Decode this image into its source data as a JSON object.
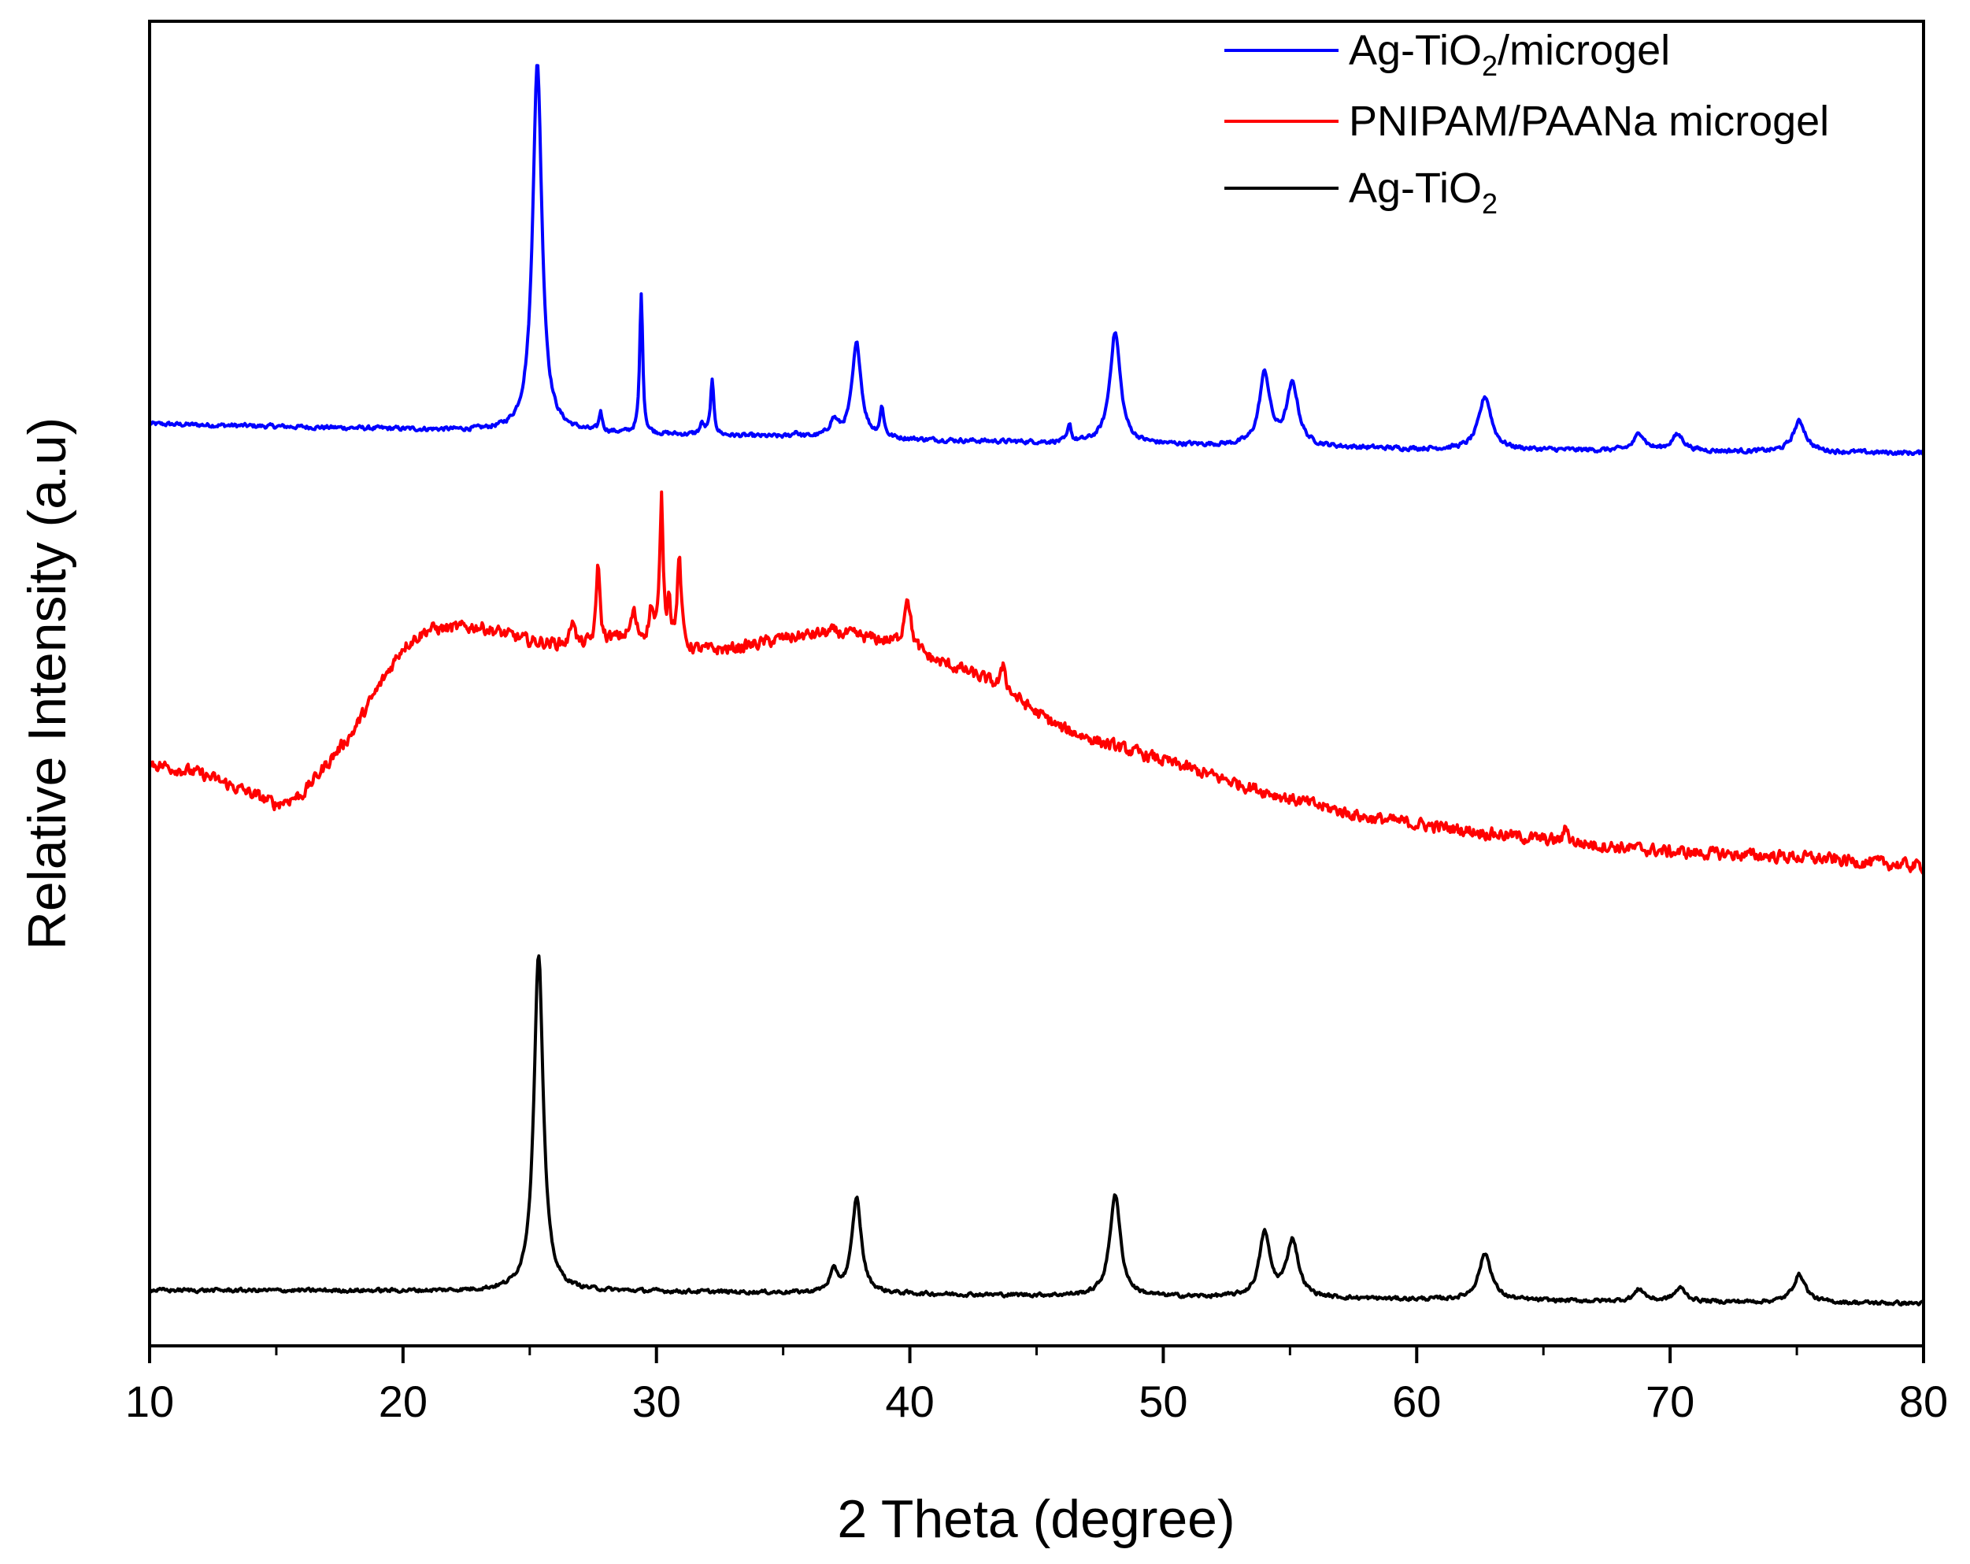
{
  "chart_data": {
    "type": "line",
    "title": "",
    "xlabel": "2 Theta (degree)",
    "ylabel": "Relative Intensity (a.u)",
    "xlim": [
      10,
      80
    ],
    "ylim": [
      0,
      100
    ],
    "xticks": [
      10,
      20,
      30,
      40,
      50,
      60,
      70,
      80
    ],
    "y_tick_labels": false,
    "legend_position": "top-right",
    "series": [
      {
        "name": "Ag-TiO2/microgel",
        "legend_label": {
          "base": "Ag-TiO",
          "sub": "2",
          "rest": "/microgel"
        },
        "color": "#0000ff",
        "baseline": [
          [
            10,
            69.6
          ],
          [
            25,
            69.0
          ],
          [
            35,
            68.6
          ],
          [
            45,
            68.2
          ],
          [
            60,
            67.7
          ],
          [
            80,
            67.4
          ]
        ],
        "peaks": [
          {
            "x": 25.3,
            "h": 27.8,
            "w": 0.22
          },
          {
            "x": 27.8,
            "h": 1.5,
            "w": 0.07
          },
          {
            "x": 29.4,
            "h": 10.6,
            "w": 0.07
          },
          {
            "x": 32.2,
            "h": 4.0,
            "w": 0.08
          },
          {
            "x": 31.8,
            "h": 0.8,
            "w": 0.1
          },
          {
            "x": 35.5,
            "h": 0.4,
            "w": 0.1
          },
          {
            "x": 37.0,
            "h": 1.2,
            "w": 0.2
          },
          {
            "x": 37.9,
            "h": 7.1,
            "w": 0.22
          },
          {
            "x": 38.9,
            "h": 2.2,
            "w": 0.09
          },
          {
            "x": 46.3,
            "h": 1.4,
            "w": 0.07
          },
          {
            "x": 48.1,
            "h": 8.4,
            "w": 0.25
          },
          {
            "x": 54.0,
            "h": 5.4,
            "w": 0.25
          },
          {
            "x": 55.1,
            "h": 4.6,
            "w": 0.28
          },
          {
            "x": 62.7,
            "h": 4.0,
            "w": 0.3
          },
          {
            "x": 68.8,
            "h": 1.3,
            "w": 0.25
          },
          {
            "x": 70.3,
            "h": 1.2,
            "w": 0.3
          },
          {
            "x": 75.1,
            "h": 2.3,
            "w": 0.3
          }
        ],
        "noise": 0.25
      },
      {
        "name": "PNIPAM/PAANa microgel",
        "legend_label": {
          "base": "PNIPAM/PAANa microgel",
          "sub": "",
          "rest": ""
        },
        "color": "#ff0000",
        "baseline": [
          [
            10,
            44.0
          ],
          [
            12,
            43.2
          ],
          [
            14,
            41.7
          ],
          [
            15,
            40.9
          ],
          [
            16,
            41.6
          ],
          [
            18,
            46.3
          ],
          [
            19,
            49.6
          ],
          [
            20,
            52.8
          ],
          [
            21,
            54.1
          ],
          [
            23,
            54.3
          ],
          [
            25,
            53.2
          ],
          [
            27,
            52.8
          ],
          [
            29,
            53.6
          ],
          [
            31,
            52.4
          ],
          [
            33,
            52.6
          ],
          [
            35,
            53.4
          ],
          [
            37,
            53.9
          ],
          [
            39,
            53.2
          ],
          [
            40,
            52.7
          ],
          [
            41,
            51.7
          ],
          [
            42,
            51.1
          ],
          [
            43,
            50.3
          ],
          [
            44,
            49.2
          ],
          [
            45,
            47.8
          ],
          [
            46,
            46.6
          ],
          [
            48,
            45.3
          ],
          [
            50,
            44.2
          ],
          [
            52,
            43.0
          ],
          [
            55,
            41.3
          ],
          [
            58,
            39.9
          ],
          [
            62,
            38.9
          ],
          [
            66,
            38.0
          ],
          [
            70,
            37.3
          ],
          [
            75,
            36.9
          ],
          [
            80,
            36.2
          ]
        ],
        "peaks": [
          {
            "x": 26.7,
            "h": 2.2,
            "w": 0.1
          },
          {
            "x": 27.7,
            "h": 6.2,
            "w": 0.08
          },
          {
            "x": 29.1,
            "h": 1.8,
            "w": 0.1
          },
          {
            "x": 29.8,
            "h": 2.4,
            "w": 0.1
          },
          {
            "x": 30.2,
            "h": 10.8,
            "w": 0.08
          },
          {
            "x": 30.5,
            "h": 3.5,
            "w": 0.07
          },
          {
            "x": 30.9,
            "h": 6.8,
            "w": 0.1
          },
          {
            "x": 39.9,
            "h": 3.9,
            "w": 0.15
          },
          {
            "x": 43.7,
            "h": 2.0,
            "w": 0.1
          },
          {
            "x": 65.9,
            "h": 1.2,
            "w": 0.1
          }
        ],
        "noise": 0.7
      },
      {
        "name": "Ag-TiO2",
        "legend_label": {
          "base": "Ag-TiO",
          "sub": "2",
          "rest": ""
        },
        "color": "#000000",
        "baseline": [
          [
            10,
            4.2
          ],
          [
            30,
            4.1
          ],
          [
            50,
            3.7
          ],
          [
            65,
            3.4
          ],
          [
            80,
            3.2
          ]
        ],
        "peaks": [
          {
            "x": 25.35,
            "h": 25.5,
            "w": 0.22
          },
          {
            "x": 37.0,
            "h": 1.5,
            "w": 0.2
          },
          {
            "x": 37.9,
            "h": 7.2,
            "w": 0.22
          },
          {
            "x": 48.1,
            "h": 7.7,
            "w": 0.25
          },
          {
            "x": 54.0,
            "h": 4.8,
            "w": 0.25
          },
          {
            "x": 55.1,
            "h": 4.3,
            "w": 0.28
          },
          {
            "x": 62.7,
            "h": 3.5,
            "w": 0.3
          },
          {
            "x": 68.8,
            "h": 0.9,
            "w": 0.25
          },
          {
            "x": 70.4,
            "h": 1.0,
            "w": 0.28
          },
          {
            "x": 75.1,
            "h": 2.1,
            "w": 0.3
          }
        ],
        "noise": 0.22
      }
    ]
  }
}
